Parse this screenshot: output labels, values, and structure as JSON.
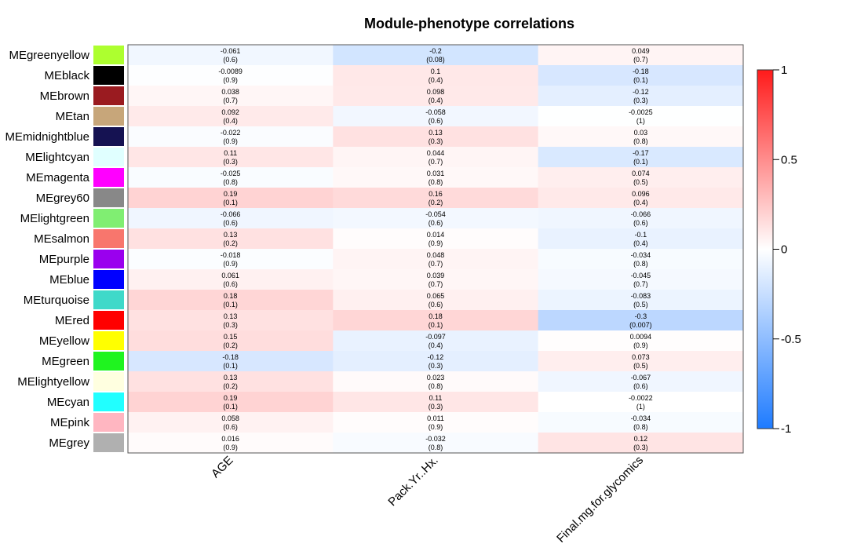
{
  "chart_data": {
    "type": "heatmap",
    "title": "Module-phenotype correlations",
    "rows": [
      "MEgreenyellow",
      "MEblack",
      "MEbrown",
      "MEtan",
      "MEmidnightblue",
      "MElightcyan",
      "MEmagenta",
      "MEgrey60",
      "MElightgreen",
      "MEsalmon",
      "MEpurple",
      "MEblue",
      "MEturquoise",
      "MEred",
      "MEyellow",
      "MEgreen",
      "MElightyellow",
      "MEcyan",
      "MEpink",
      "MEgrey"
    ],
    "row_colors": [
      "#ADFF2F",
      "#000000",
      "#9A1B20",
      "#C7A67A",
      "#151252",
      "#E0FFFF",
      "#FF00FF",
      "#888888",
      "#80EE72",
      "#F8766D",
      "#9A00EE",
      "#0000FF",
      "#3FD9C9",
      "#FF0000",
      "#FFFF00",
      "#1FF41F",
      "#FFFFE0",
      "#21FFFF",
      "#FFB6C1",
      "#B0B0B0"
    ],
    "columns": [
      "AGE",
      "Pack.Yr..Hx.",
      "Final.mg.for.glycomics"
    ],
    "values": [
      [
        -0.061,
        -0.2,
        0.049
      ],
      [
        -0.0089,
        0.1,
        -0.18
      ],
      [
        0.038,
        0.098,
        -0.12
      ],
      [
        0.092,
        -0.058,
        -0.0025
      ],
      [
        -0.022,
        0.13,
        0.03
      ],
      [
        0.11,
        0.044,
        -0.17
      ],
      [
        -0.025,
        0.031,
        0.074
      ],
      [
        0.19,
        0.16,
        0.096
      ],
      [
        -0.066,
        -0.054,
        -0.066
      ],
      [
        0.13,
        0.014,
        -0.1
      ],
      [
        -0.018,
        0.048,
        -0.034
      ],
      [
        0.061,
        0.039,
        -0.045
      ],
      [
        0.18,
        0.065,
        -0.083
      ],
      [
        0.13,
        0.18,
        -0.3
      ],
      [
        0.15,
        -0.097,
        0.0094
      ],
      [
        -0.18,
        -0.12,
        0.073
      ],
      [
        0.13,
        0.023,
        -0.067
      ],
      [
        0.19,
        0.11,
        -0.0022
      ],
      [
        0.058,
        0.011,
        -0.034
      ],
      [
        0.016,
        -0.032,
        0.12
      ]
    ],
    "cell_labels": [
      [
        [
          "-0.061",
          "(0.6)"
        ],
        [
          "-0.2",
          "(0.08)"
        ],
        [
          "0.049",
          "(0.7)"
        ]
      ],
      [
        [
          "-0.0089",
          "(0.9)"
        ],
        [
          "0.1",
          "(0.4)"
        ],
        [
          "-0.18",
          "(0.1)"
        ]
      ],
      [
        [
          "0.038",
          "(0.7)"
        ],
        [
          "0.098",
          "(0.4)"
        ],
        [
          "-0.12",
          "(0.3)"
        ]
      ],
      [
        [
          "0.092",
          "(0.4)"
        ],
        [
          "-0.058",
          "(0.6)"
        ],
        [
          "-0.0025",
          "(1)"
        ]
      ],
      [
        [
          "-0.022",
          "(0.9)"
        ],
        [
          "0.13",
          "(0.3)"
        ],
        [
          "0.03",
          "(0.8)"
        ]
      ],
      [
        [
          "0.11",
          "(0.3)"
        ],
        [
          "0.044",
          "(0.7)"
        ],
        [
          "-0.17",
          "(0.1)"
        ]
      ],
      [
        [
          "-0.025",
          "(0.8)"
        ],
        [
          "0.031",
          "(0.8)"
        ],
        [
          "0.074",
          "(0.5)"
        ]
      ],
      [
        [
          "0.19",
          "(0.1)"
        ],
        [
          "0.16",
          "(0.2)"
        ],
        [
          "0.096",
          "(0.4)"
        ]
      ],
      [
        [
          "-0.066",
          "(0.6)"
        ],
        [
          "-0.054",
          "(0.6)"
        ],
        [
          "-0.066",
          "(0.6)"
        ]
      ],
      [
        [
          "0.13",
          "(0.2)"
        ],
        [
          "0.014",
          "(0.9)"
        ],
        [
          "-0.1",
          "(0.4)"
        ]
      ],
      [
        [
          "-0.018",
          "(0.9)"
        ],
        [
          "0.048",
          "(0.7)"
        ],
        [
          "-0.034",
          "(0.8)"
        ]
      ],
      [
        [
          "0.061",
          "(0.6)"
        ],
        [
          "0.039",
          "(0.7)"
        ],
        [
          "-0.045",
          "(0.7)"
        ]
      ],
      [
        [
          "0.18",
          "(0.1)"
        ],
        [
          "0.065",
          "(0.6)"
        ],
        [
          "-0.083",
          "(0.5)"
        ]
      ],
      [
        [
          "0.13",
          "(0.3)"
        ],
        [
          "0.18",
          "(0.1)"
        ],
        [
          "-0.3",
          "(0.007)"
        ]
      ],
      [
        [
          "0.15",
          "(0.2)"
        ],
        [
          "-0.097",
          "(0.4)"
        ],
        [
          "0.0094",
          "(0.9)"
        ]
      ],
      [
        [
          "-0.18",
          "(0.1)"
        ],
        [
          "-0.12",
          "(0.3)"
        ],
        [
          "0.073",
          "(0.5)"
        ]
      ],
      [
        [
          "0.13",
          "(0.2)"
        ],
        [
          "0.023",
          "(0.8)"
        ],
        [
          "-0.067",
          "(0.6)"
        ]
      ],
      [
        [
          "0.19",
          "(0.1)"
        ],
        [
          "0.11",
          "(0.3)"
        ],
        [
          "-0.0022",
          "(1)"
        ]
      ],
      [
        [
          "0.058",
          "(0.6)"
        ],
        [
          "0.011",
          "(0.9)"
        ],
        [
          "-0.034",
          "(0.8)"
        ]
      ],
      [
        [
          "0.016",
          "(0.9)"
        ],
        [
          "-0.032",
          "(0.8)"
        ],
        [
          "0.12",
          "(0.3)"
        ]
      ]
    ],
    "colorbar": {
      "range": [
        -1,
        1
      ],
      "ticks": [
        1,
        0.5,
        0,
        -0.5,
        -1
      ],
      "tick_labels": [
        "1",
        "0.5",
        "0",
        "-0.5",
        "-1"
      ],
      "colors": {
        "low": "#1E7BFF",
        "mid": "#FFFFFF",
        "high": "#FF1A1A"
      }
    }
  }
}
